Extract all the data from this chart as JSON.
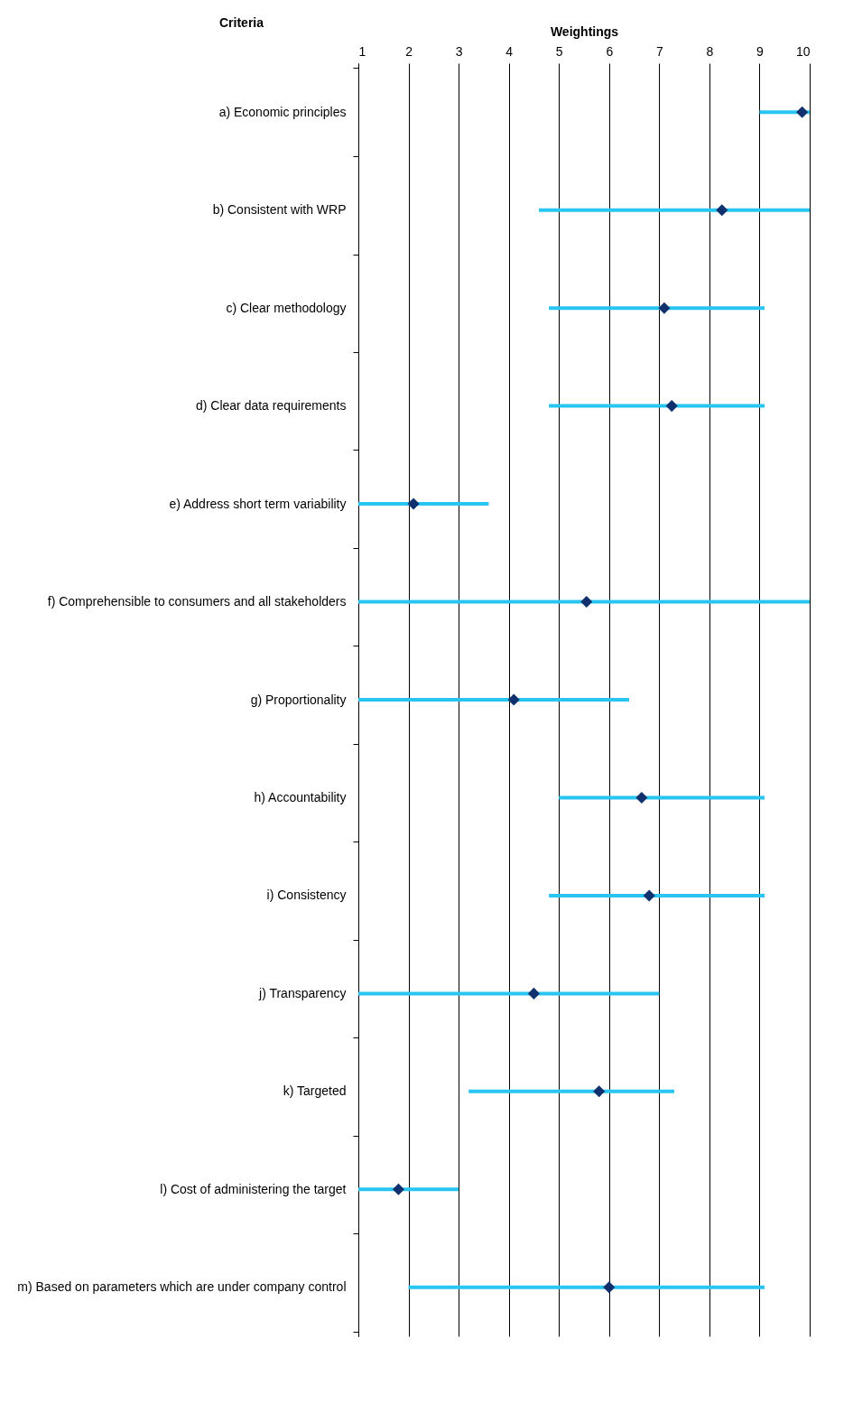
{
  "chart_data": {
    "type": "scatter",
    "orientation": "horizontal",
    "xlabel": "Weightings",
    "ylabel": "Criteria",
    "categories": [
      "a) Economic principles",
      "b) Consistent with WRP",
      "c) Clear methodology",
      "d) Clear data requirements",
      "e) Address short term variability",
      "f) Comprehensible to consumers and all stakeholders",
      "g) Proportionality",
      "h) Accountability",
      "i) Consistency",
      "j) Transparency",
      "k) Targeted",
      "l) Cost of administering the target",
      "m) Based on parameters which are under company control"
    ],
    "series": [
      {
        "type": "bar",
        "color": "#29c5f2",
        "base": [
          9.0,
          4.6,
          4.8,
          4.8,
          1.0,
          1.0,
          1.0,
          5.0,
          4.8,
          1.0,
          3.2,
          1.0,
          2.0
        ],
        "values": [
          1.0,
          5.4,
          4.3,
          4.3,
          2.6,
          9.0,
          5.4,
          4.1,
          4.3,
          6.0,
          4.1,
          2.0,
          7.1
        ]
      },
      {
        "color": "#10306e",
        "values": [
          9.85,
          8.25,
          7.1,
          7.25,
          2.1,
          5.55,
          4.1,
          6.65,
          6.8,
          4.5,
          5.8,
          1.8,
          6.0
        ]
      }
    ],
    "xlim": [
      1,
      10
    ],
    "xticks": [
      1,
      2,
      3,
      4,
      5,
      6,
      7,
      8,
      9,
      10
    ],
    "grid": "x",
    "marker": "diamond"
  }
}
